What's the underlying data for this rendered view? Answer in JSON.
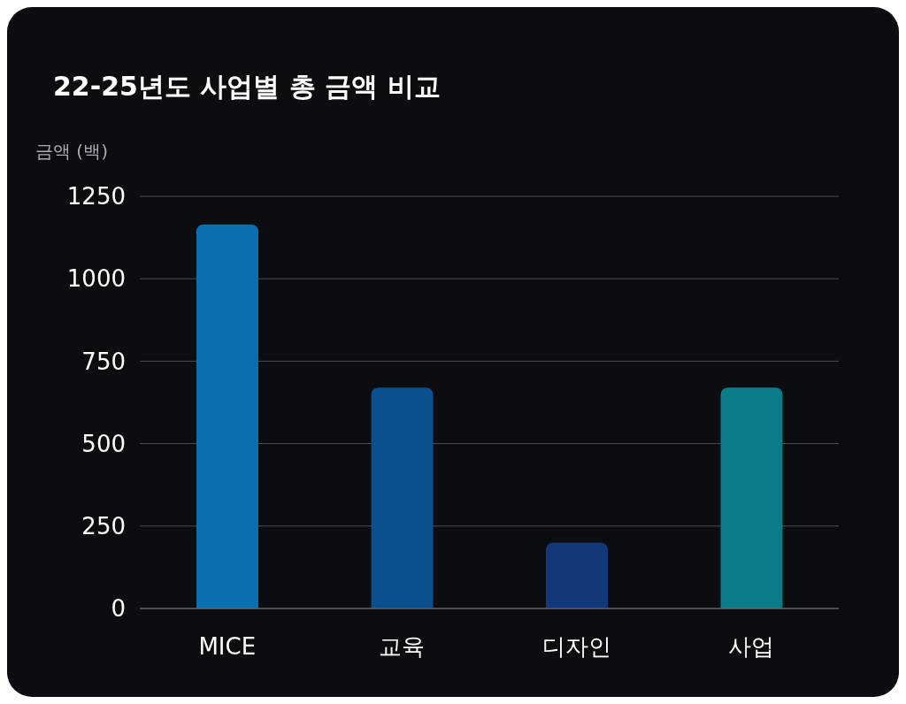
{
  "chart_data": {
    "type": "bar",
    "title": "22-25년도 사업별 총 금액 비교",
    "ylabel": "금액 (백)",
    "categories": [
      "MICE",
      "교육",
      "디자인",
      "사업"
    ],
    "values": [
      1165,
      670,
      200,
      670
    ],
    "colors": [
      "#0a6fae",
      "#0a4f8e",
      "#13387a",
      "#0a7d88"
    ],
    "ylim": [
      0,
      1250
    ],
    "yticks": [
      0,
      250,
      500,
      750,
      1000,
      1250
    ],
    "grid": "y",
    "legend": false
  }
}
